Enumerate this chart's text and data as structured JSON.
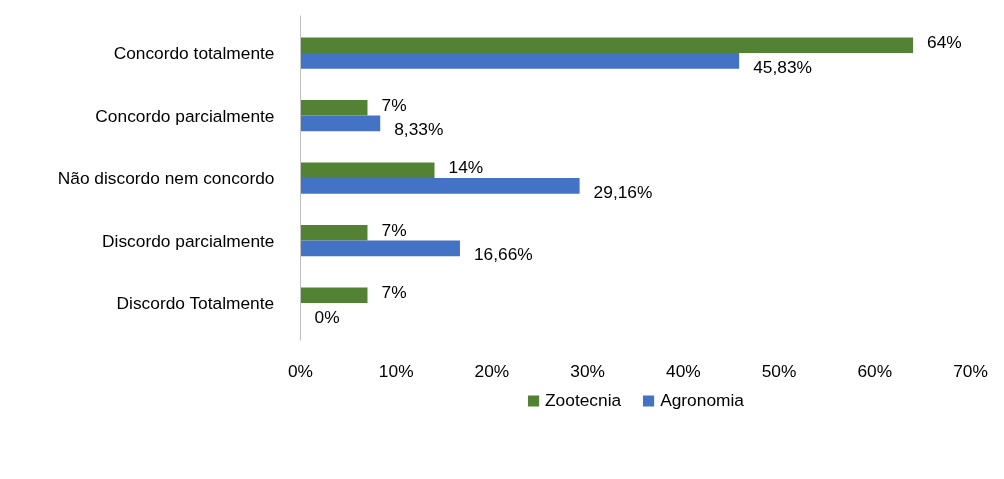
{
  "chart_data": {
    "type": "bar",
    "orientation": "horizontal",
    "categories": [
      "Concordo totalmente",
      "Concordo parcialmente",
      "Não discordo nem concordo",
      "Discordo parcialmente",
      "Discordo Totalmente"
    ],
    "series": [
      {
        "name": "Zootecnia",
        "color": "#548235",
        "values": [
          64,
          7,
          14,
          7,
          7
        ],
        "value_labels": [
          "64%",
          "7%",
          "14%",
          "7%",
          "7%"
        ]
      },
      {
        "name": "Agronomia",
        "color": "#4472c4",
        "values": [
          45.83,
          8.33,
          29.16,
          16.66,
          0
        ],
        "value_labels": [
          "45,83%",
          "8,33%",
          "29,16%",
          "16,66%",
          "0%"
        ]
      }
    ],
    "xlim": [
      0,
      70
    ],
    "xticks": [
      {
        "value": 0,
        "label": "0%"
      },
      {
        "value": 10,
        "label": "10%"
      },
      {
        "value": 20,
        "label": "20%"
      },
      {
        "value": 30,
        "label": "30%"
      },
      {
        "value": 40,
        "label": "40%"
      },
      {
        "value": 50,
        "label": "50%"
      },
      {
        "value": 60,
        "label": "60%"
      },
      {
        "value": 70,
        "label": "70%"
      }
    ],
    "grid": false,
    "legend": "bottom"
  }
}
